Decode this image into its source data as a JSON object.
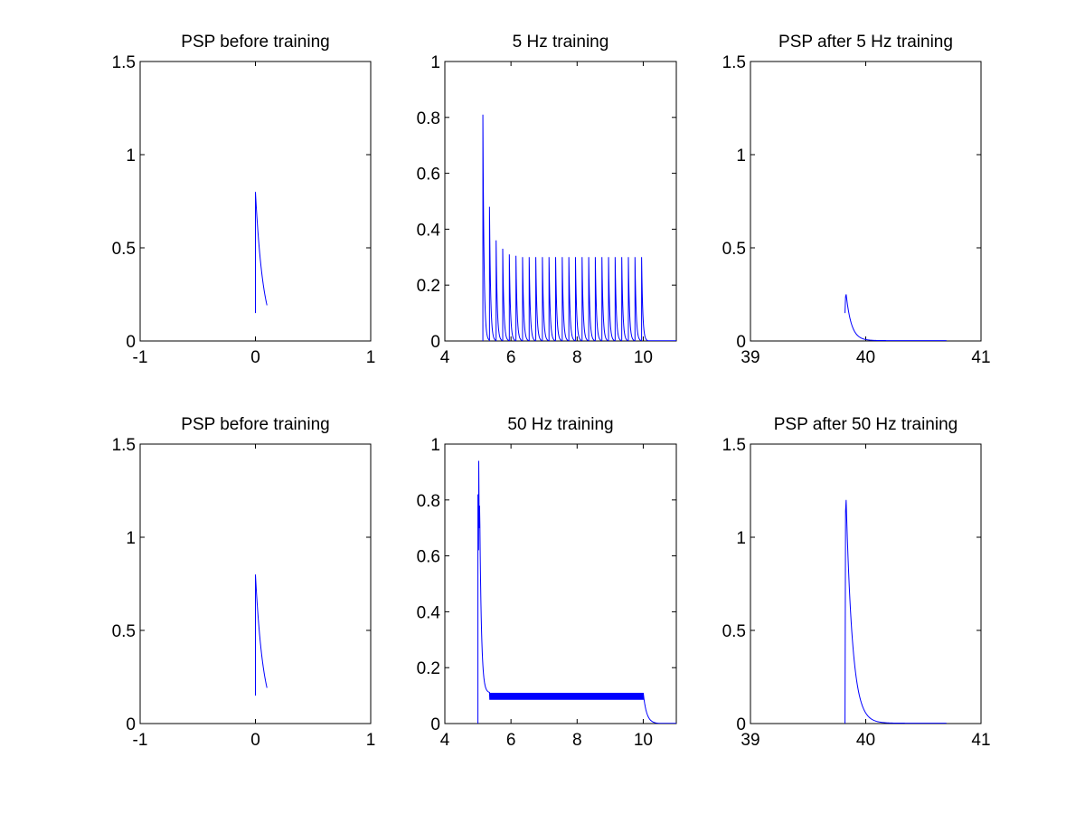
{
  "figure": {
    "background": "#ffffff",
    "line_color": "#0000ff",
    "axis_color": "#000000"
  },
  "chart_data": [
    {
      "type": "line",
      "title": "PSP before training",
      "xlim": [
        -1,
        1
      ],
      "ylim": [
        0,
        1.5
      ],
      "xticks": [
        -1,
        0,
        1
      ],
      "yticks": [
        0,
        0.5,
        1,
        1.5
      ],
      "xtick_labels": [
        "-1",
        "0",
        "1"
      ],
      "ytick_labels": [
        "0",
        "0.5",
        "1",
        "1.5"
      ],
      "xlabel": "",
      "ylabel": "",
      "grid": false,
      "series": [
        {
          "shape": "psp",
          "start": 0.0,
          "end": 0.1,
          "base": 0.15,
          "peak": 0.8,
          "tau": 0.07,
          "final": 0.09
        }
      ]
    },
    {
      "type": "line",
      "title": "5 Hz training",
      "xlim": [
        4,
        11
      ],
      "ylim": [
        0,
        1
      ],
      "xticks": [
        4,
        6,
        8,
        10
      ],
      "yticks": [
        0,
        0.2,
        0.4,
        0.6,
        0.8,
        1
      ],
      "xtick_labels": [
        "4",
        "6",
        "8",
        "10"
      ],
      "ytick_labels": [
        "0",
        "0.2",
        "0.4",
        "0.6",
        "0.8",
        "1"
      ],
      "xlabel": "",
      "ylabel": "",
      "grid": false,
      "series": [
        {
          "shape": "train",
          "start": 5.15,
          "interval": 0.2,
          "count": 25,
          "tau": 0.035,
          "baseline": 0.0,
          "peaks": [
            0.81,
            0.48,
            0.36,
            0.33,
            0.31,
            0.305,
            0.3,
            0.3,
            0.3,
            0.3,
            0.3,
            0.3,
            0.3,
            0.3,
            0.3,
            0.3,
            0.3,
            0.3,
            0.3,
            0.3,
            0.3,
            0.3,
            0.3,
            0.3,
            0.3
          ]
        }
      ]
    },
    {
      "type": "line",
      "title": "PSP after 5 Hz training",
      "xlim": [
        39,
        41
      ],
      "ylim": [
        0,
        1.5
      ],
      "xticks": [
        39,
        40,
        41
      ],
      "yticks": [
        0,
        0.5,
        1,
        1.5
      ],
      "xtick_labels": [
        "39",
        "40",
        "41"
      ],
      "ytick_labels": [
        "0",
        "0.5",
        "1",
        "1.5"
      ],
      "xlabel": "",
      "ylabel": "",
      "grid": false,
      "series": [
        {
          "shape": "psp_after",
          "onset": 39.82,
          "end": 40.7,
          "pre": 0.15,
          "peak": 0.25,
          "tau": 0.045
        }
      ]
    },
    {
      "type": "line",
      "title": "PSP before training",
      "xlim": [
        -1,
        1
      ],
      "ylim": [
        0,
        1.5
      ],
      "xticks": [
        -1,
        0,
        1
      ],
      "yticks": [
        0,
        0.5,
        1,
        1.5
      ],
      "xtick_labels": [
        "-1",
        "0",
        "1"
      ],
      "ytick_labels": [
        "0",
        "0.5",
        "1",
        "1.5"
      ],
      "xlabel": "",
      "ylabel": "",
      "grid": false,
      "series": [
        {
          "shape": "psp",
          "start": 0.0,
          "end": 0.1,
          "base": 0.15,
          "peak": 0.8,
          "tau": 0.07,
          "final": 0.09
        }
      ]
    },
    {
      "type": "line",
      "title": "50 Hz training",
      "xlim": [
        4,
        11
      ],
      "ylim": [
        0,
        1
      ],
      "xticks": [
        4,
        6,
        8,
        10
      ],
      "yticks": [
        0,
        0.2,
        0.4,
        0.6,
        0.8,
        1
      ],
      "xtick_labels": [
        "4",
        "6",
        "8",
        "10"
      ],
      "ytick_labels": [
        "0",
        "0.2",
        "0.4",
        "0.6",
        "0.8",
        "1"
      ],
      "xlabel": "",
      "ylabel": "",
      "grid": false,
      "series": [
        {
          "shape": "dense",
          "start": 5.0,
          "end": 10.0,
          "interval": 0.02,
          "first_peaks": [
            0.82,
            0.94,
            0.78
          ],
          "steady_low": 0.085,
          "steady_high": 0.11,
          "decay_tau": 0.1,
          "tail_end": 11.0
        }
      ]
    },
    {
      "type": "line",
      "title": "PSP after 50 Hz training",
      "xlim": [
        39,
        41
      ],
      "ylim": [
        0,
        1.5
      ],
      "xticks": [
        39,
        40,
        41
      ],
      "yticks": [
        0,
        0.5,
        1,
        1.5
      ],
      "xtick_labels": [
        "39",
        "40",
        "41"
      ],
      "ytick_labels": [
        "0",
        "0.5",
        "1",
        "1.5"
      ],
      "xlabel": "",
      "ylabel": "",
      "grid": false,
      "series": [
        {
          "shape": "psp_after",
          "onset": 39.82,
          "end": 40.7,
          "pre": 0.0,
          "peak": 1.2,
          "tau": 0.055
        }
      ]
    }
  ]
}
